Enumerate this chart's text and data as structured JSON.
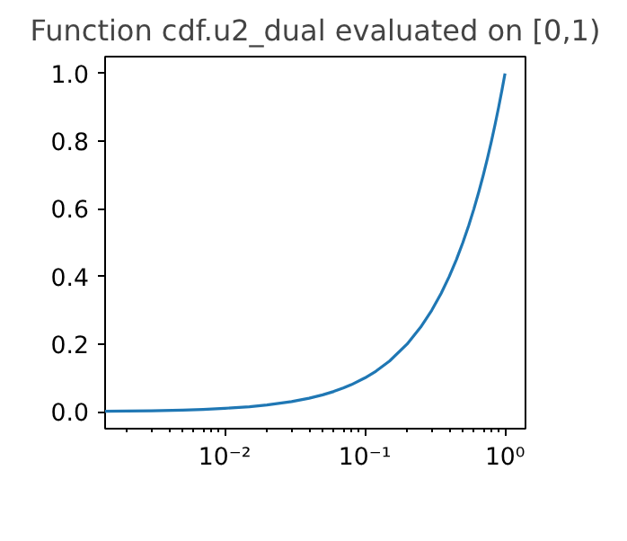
{
  "chart_data": {
    "type": "line",
    "title": "Function cdf.u2_dual evaluated on [0,1)",
    "log": "x",
    "grid": false,
    "xlim": [
      0.0014,
      1.4
    ],
    "ylim": [
      -0.05,
      1.05
    ],
    "xticks": [
      {
        "value": 0.002,
        "label": null
      },
      {
        "value": 0.003,
        "label": null
      },
      {
        "value": 0.004,
        "label": null
      },
      {
        "value": 0.005,
        "label": null
      },
      {
        "value": 0.006,
        "label": null
      },
      {
        "value": 0.007,
        "label": null
      },
      {
        "value": 0.008,
        "label": null
      },
      {
        "value": 0.009,
        "label": null
      },
      {
        "value": 0.01,
        "label": "10⁻²"
      },
      {
        "value": 0.02,
        "label": null
      },
      {
        "value": 0.03,
        "label": null
      },
      {
        "value": 0.04,
        "label": null
      },
      {
        "value": 0.05,
        "label": null
      },
      {
        "value": 0.06,
        "label": null
      },
      {
        "value": 0.07,
        "label": null
      },
      {
        "value": 0.08,
        "label": null
      },
      {
        "value": 0.09,
        "label": null
      },
      {
        "value": 0.1,
        "label": "10⁻¹"
      },
      {
        "value": 0.2,
        "label": null
      },
      {
        "value": 0.3,
        "label": null
      },
      {
        "value": 0.4,
        "label": null
      },
      {
        "value": 0.5,
        "label": null
      },
      {
        "value": 0.6,
        "label": null
      },
      {
        "value": 0.7,
        "label": null
      },
      {
        "value": 0.8,
        "label": null
      },
      {
        "value": 0.9,
        "label": null
      },
      {
        "value": 1,
        "label": "10⁰"
      }
    ],
    "yticks": [
      {
        "value": 0,
        "label": "0.0"
      },
      {
        "value": 0.2,
        "label": "0.2"
      },
      {
        "value": 0.4,
        "label": "0.4"
      },
      {
        "value": 0.6,
        "label": "0.6"
      },
      {
        "value": 0.8,
        "label": "0.8"
      },
      {
        "value": 1,
        "label": "1.0"
      }
    ],
    "series": [
      {
        "color": "#1f77b4",
        "x": [
          0.0014,
          0.002,
          0.003,
          0.005,
          0.007,
          0.01,
          0.015,
          0.02,
          0.03,
          0.04,
          0.05,
          0.06,
          0.07,
          0.08,
          0.1,
          0.12,
          0.15,
          0.2,
          0.25,
          0.3,
          0.35,
          0.4,
          0.45,
          0.5,
          0.55,
          0.6,
          0.65,
          0.7,
          0.75,
          0.8,
          0.85,
          0.9,
          0.95,
          1.0
        ],
        "values": [
          0.0014,
          0.002,
          0.003,
          0.005,
          0.007,
          0.01,
          0.015,
          0.02,
          0.03,
          0.04,
          0.05,
          0.06,
          0.07,
          0.08,
          0.1,
          0.12,
          0.15,
          0.2,
          0.25,
          0.3,
          0.35,
          0.4,
          0.45,
          0.5,
          0.55,
          0.6,
          0.65,
          0.7,
          0.75,
          0.8,
          0.85,
          0.9,
          0.95,
          1.0
        ]
      }
    ]
  }
}
